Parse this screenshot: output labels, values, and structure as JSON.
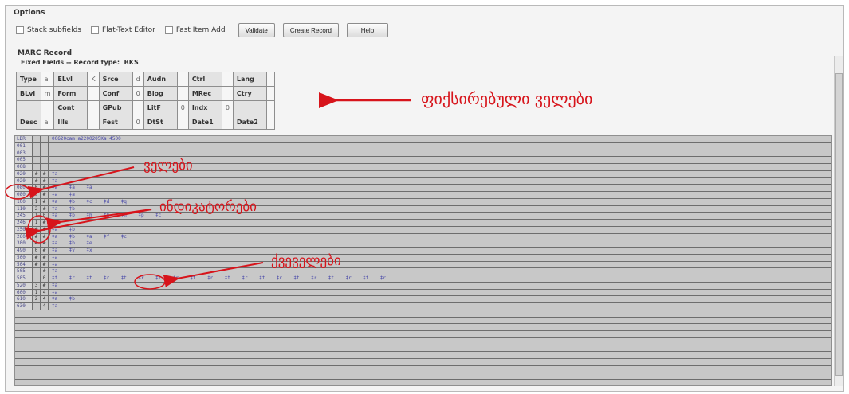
{
  "options": {
    "title": "Options",
    "checkboxes": [
      "Stack subfields",
      "Flat-Text Editor",
      "Fast Item Add"
    ],
    "buttons": [
      "Validate",
      "Create Record",
      "Help"
    ]
  },
  "marc": {
    "title": "MARC Record",
    "fixed_fields_label": "Fixed Fields -- Record type:",
    "record_type": "BKS",
    "fixed_rows": [
      [
        [
          "Type",
          "a"
        ],
        [
          "ELvl",
          "K"
        ],
        [
          "Srce",
          "d"
        ],
        [
          "Audn",
          ""
        ],
        [
          "Ctrl",
          ""
        ],
        [
          "Lang",
          ""
        ]
      ],
      [
        [
          "BLvl",
          "m"
        ],
        [
          "Form",
          ""
        ],
        [
          "Conf",
          "0"
        ],
        [
          "Biog",
          ""
        ],
        [
          "MRec",
          ""
        ],
        [
          "Ctry",
          ""
        ]
      ],
      [
        [
          "",
          ""
        ],
        [
          "Cont",
          ""
        ],
        [
          "GPub",
          ""
        ],
        [
          "LitF",
          "0"
        ],
        [
          "Indx",
          "0"
        ],
        [
          "",
          ""
        ]
      ],
      [
        [
          "Desc",
          "a"
        ],
        [
          "Ills",
          ""
        ],
        [
          "Fest",
          "0"
        ],
        [
          "DtSt",
          ""
        ],
        [
          "Date1",
          ""
        ],
        [
          "Date2",
          ""
        ]
      ]
    ]
  },
  "fields": [
    {
      "tag": "LDR",
      "i1": "",
      "i2": "",
      "sf": "00620cam a2200205Ka 4500"
    },
    {
      "tag": "001",
      "i1": "",
      "i2": "",
      "sf": ""
    },
    {
      "tag": "003",
      "i1": "",
      "i2": "",
      "sf": ""
    },
    {
      "tag": "005",
      "i1": "",
      "i2": "",
      "sf": ""
    },
    {
      "tag": "008",
      "i1": "",
      "i2": "",
      "sf": ""
    },
    {
      "tag": "020",
      "i1": "#",
      "i2": "#",
      "sf": "‡a"
    },
    {
      "tag": "020",
      "i1": "#",
      "i2": "#",
      "sf": "‡a"
    },
    {
      "tag": "080",
      "i1": "0",
      "i2": "#",
      "sf": "‡a    ‡a    ‡a"
    },
    {
      "tag": "080",
      "i1": "0",
      "i2": "#",
      "sf": "‡a    ‡a"
    },
    {
      "tag": "100",
      "i1": "1",
      "i2": "#",
      "sf": "‡a    ‡b    ‡c    ‡d    ‡q"
    },
    {
      "tag": "110",
      "i1": "2",
      "i2": "#",
      "sf": "‡a    ‡b"
    },
    {
      "tag": "245",
      "i1": "1",
      "i2": "0",
      "sf": "‡a    ‡b    ‡h    ‡k    ‡n    ‡p    ‡c"
    },
    {
      "tag": "246",
      "i1": "1",
      "i2": "#",
      "sf": "‡a"
    },
    {
      "tag": "250",
      "i1": "#",
      "i2": "#",
      "sf": "‡a    ‡b"
    },
    {
      "tag": "260",
      "i1": "#",
      "i2": "#",
      "sf": "‡a    ‡b    ‡a    ‡f    ‡c"
    },
    {
      "tag": "300",
      "i1": "#",
      "i2": "#",
      "sf": "‡a    ‡b    ‡e"
    },
    {
      "tag": "490",
      "i1": "0",
      "i2": "#",
      "sf": "‡a    ‡v    ‡x"
    },
    {
      "tag": "500",
      "i1": "#",
      "i2": "#",
      "sf": "‡a"
    },
    {
      "tag": "504",
      "i1": "#",
      "i2": "#",
      "sf": "‡a"
    },
    {
      "tag": "505",
      "i1": "",
      "i2": "#",
      "sf": "‡a"
    },
    {
      "tag": "505",
      "i1": "",
      "i2": "0",
      "sf": "‡t    ‡r    ‡t    ‡r    ‡t    ‡r    ‡t    ‡r    ‡t    ‡r    ‡t    ‡r    ‡t    ‡r    ‡t    ‡r    ‡t    ‡r    ‡t    ‡r"
    },
    {
      "tag": "520",
      "i1": "3",
      "i2": "#",
      "sf": "‡a"
    },
    {
      "tag": "600",
      "i1": "1",
      "i2": "4",
      "sf": "‡a"
    },
    {
      "tag": "610",
      "i1": "2",
      "i2": "4",
      "sf": "‡a    ‡b"
    },
    {
      "tag": "630",
      "i1": "",
      "i2": "4",
      "sf": "‡a"
    }
  ],
  "annotations": {
    "fixed_fields": "ფიქსირებული ველები",
    "fields": "ველები",
    "indicators": "ინდიკატორები",
    "subfields": "ქვეველები"
  },
  "colors": {
    "annotation": "#d7141b",
    "subfield_text": "#4646a8"
  }
}
